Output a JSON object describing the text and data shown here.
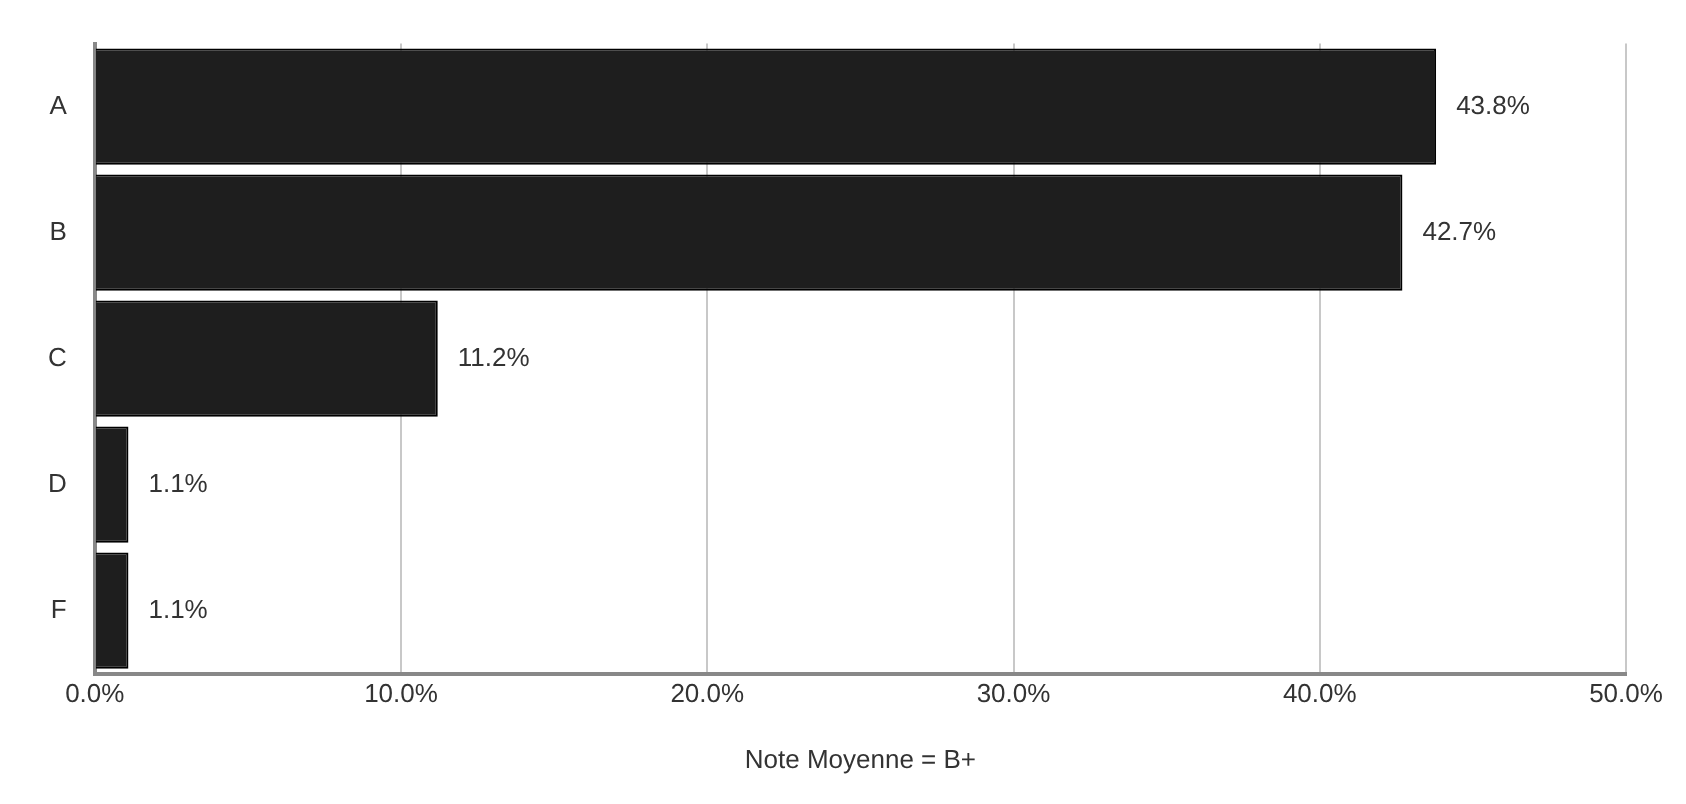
{
  "chart_data": {
    "type": "bar",
    "orientation": "horizontal",
    "xlabel": "Note Moyenne = B+",
    "categories": [
      "A",
      "B",
      "C",
      "D",
      "F"
    ],
    "values": [
      43.8,
      42.7,
      11.2,
      1.1,
      1.1
    ],
    "value_labels": [
      "43.8%",
      "42.7%",
      "11.2%",
      "1.1%",
      "1.1%"
    ],
    "color": "#1e1e1e",
    "xlim": [
      0,
      50
    ],
    "xticks": [
      {
        "value": 0,
        "label": "0.0%"
      },
      {
        "value": 10,
        "label": "10.0%"
      },
      {
        "value": 20,
        "label": "20.0%"
      },
      {
        "value": 30,
        "label": "30.0%"
      },
      {
        "value": 40,
        "label": "40.0%"
      },
      {
        "value": 50,
        "label": "50.0%"
      }
    ],
    "grid": "x",
    "legend": false
  }
}
